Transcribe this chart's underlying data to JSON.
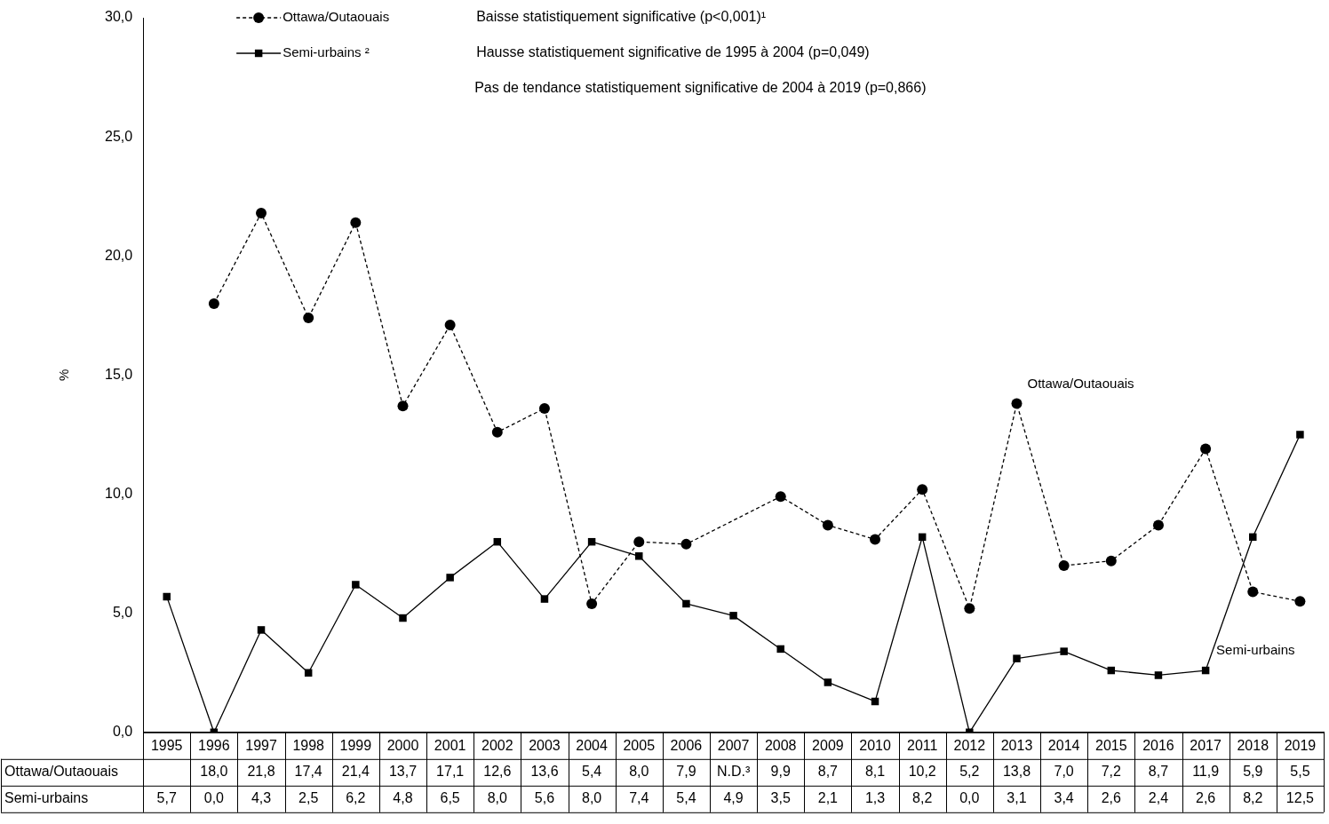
{
  "chart_data": {
    "type": "line",
    "ylabel": "%",
    "categories": [
      "1995",
      "1996",
      "1997",
      "1998",
      "1999",
      "2000",
      "2001",
      "2002",
      "2003",
      "2004",
      "2005",
      "2006",
      "2007",
      "2008",
      "2009",
      "2010",
      "2011",
      "2012",
      "2013",
      "2014",
      "2015",
      "2016",
      "2017",
      "2018",
      "2019"
    ],
    "ylim": [
      0,
      30
    ],
    "yticks": [
      {
        "value": 0,
        "label": "0,0"
      },
      {
        "value": 5,
        "label": "5,0"
      },
      {
        "value": 10,
        "label": "10,0"
      },
      {
        "value": 15,
        "label": "15,0"
      },
      {
        "value": 20,
        "label": "20,0"
      },
      {
        "value": 25,
        "label": "25,0"
      },
      {
        "value": 30,
        "label": "30,0"
      }
    ],
    "grid": false,
    "legend": "top left",
    "series": [
      {
        "name": "Ottawa/Outaouais",
        "color": "#000000",
        "marker": "circle",
        "line_style": "dashed",
        "values": [
          null,
          18.0,
          21.8,
          17.4,
          21.4,
          13.7,
          17.1,
          12.6,
          13.6,
          5.4,
          8.0,
          7.9,
          null,
          9.9,
          8.7,
          8.1,
          10.2,
          5.2,
          13.8,
          7.0,
          7.2,
          8.7,
          11.9,
          5.9,
          5.5
        ],
        "value_labels": [
          null,
          "18,0",
          "21,8",
          "17,4",
          "21,4",
          "13,7",
          "17,1",
          "12,6",
          "13,6",
          "5,4",
          "8,0",
          "7,9",
          "N.D.³",
          "9,9",
          "8,7",
          "8,1",
          "10,2",
          "5,2",
          "13,8",
          "7,0",
          "7,2",
          "8,7",
          "11,9",
          "5,9",
          "5,5"
        ]
      },
      {
        "name": "Semi-urbains ²",
        "color": "#000000",
        "marker": "square",
        "line_style": "solid",
        "values": [
          5.7,
          0.0,
          4.3,
          2.5,
          6.2,
          4.8,
          6.5,
          8.0,
          5.6,
          8.0,
          7.4,
          5.4,
          4.9,
          3.5,
          2.1,
          1.3,
          8.2,
          0.0,
          3.1,
          3.4,
          2.6,
          2.4,
          2.6,
          8.2,
          12.5
        ],
        "value_labels": [
          "5,7",
          "0,0",
          "4,3",
          "2,5",
          "6,2",
          "4,8",
          "6,5",
          "8,0",
          "5,6",
          "8,0",
          "7,4",
          "5,4",
          "4,9",
          "3,5",
          "2,1",
          "1,3",
          "8,2",
          "0,0",
          "3,1",
          "3,4",
          "2,6",
          "2,4",
          "2,6",
          "8,2",
          "12,5"
        ]
      }
    ],
    "annotations": [
      "Baisse statistiquement significative (p<0,001)¹",
      "Hausse statistiquement significative de 1995 à 2004 (p=0,049)",
      "Pas de tendance statistiquement significative de 2004 à 2019 (p=0,866)",
      {
        "text": "Ottawa/Outaouais",
        "x": "2013",
        "y": 13.8
      },
      {
        "text": "Semi-urbains",
        "x": "2017",
        "y": 2.6
      }
    ]
  }
}
